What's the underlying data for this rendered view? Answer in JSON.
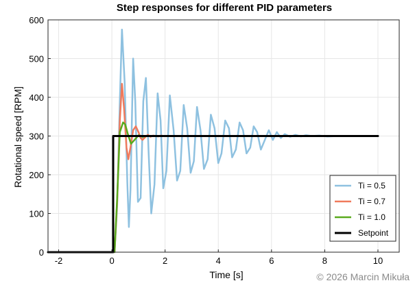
{
  "chart_data": {
    "type": "line",
    "title": "Step responses for different PID parameters",
    "xlabel": "Time [s]",
    "ylabel": "Rotational speed [RPM]",
    "xlim": [
      -2.4,
      10.8
    ],
    "ylim": [
      0,
      600
    ],
    "xticks": [
      -2,
      0,
      2,
      4,
      6,
      8,
      10
    ],
    "yticks": [
      0,
      100,
      200,
      300,
      400,
      500,
      600
    ],
    "grid": true,
    "legend_position": "bottom-right",
    "series": [
      {
        "name": "Ti = 0.5",
        "color": "#8ec1e0",
        "line_width": 2.5,
        "x": [
          0.1,
          0.2,
          0.3,
          0.38,
          0.48,
          0.58,
          0.64,
          0.7,
          0.8,
          0.88,
          0.98,
          1.08,
          1.18,
          1.28,
          1.38,
          1.48,
          1.6,
          1.72,
          1.83,
          1.93,
          2.05,
          2.18,
          2.32,
          2.45,
          2.57,
          2.7,
          2.83,
          2.96,
          3.08,
          3.2,
          3.33,
          3.46,
          3.6,
          3.72,
          3.86,
          4.0,
          4.12,
          4.26,
          4.4,
          4.52,
          4.66,
          4.8,
          4.93,
          5.06,
          5.2,
          5.33,
          5.46,
          5.6,
          5.75,
          5.9,
          6.05,
          6.2,
          6.35,
          6.5,
          6.7,
          6.9,
          7.1,
          7.3,
          7.5,
          7.8,
          8.1,
          8.5,
          9.0,
          10.0
        ],
        "y": [
          0,
          120,
          390,
          575,
          440,
          180,
          65,
          160,
          500,
          390,
          130,
          140,
          390,
          450,
          260,
          100,
          175,
          410,
          340,
          165,
          210,
          405,
          315,
          185,
          210,
          380,
          320,
          205,
          235,
          375,
          315,
          215,
          240,
          355,
          320,
          230,
          255,
          340,
          320,
          245,
          265,
          335,
          315,
          255,
          270,
          325,
          310,
          265,
          290,
          315,
          290,
          310,
          295,
          305,
          298,
          303,
          299,
          302,
          300,
          301,
          299,
          300,
          300,
          300
        ]
      },
      {
        "name": "Ti = 0.7",
        "color": "#f07a5c",
        "line_width": 2.5,
        "x": [
          0.1,
          0.2,
          0.3,
          0.38,
          0.46,
          0.55,
          0.62,
          0.7,
          0.8,
          0.9,
          1.0,
          1.08,
          1.15,
          1.25,
          1.35,
          1.45,
          1.55,
          1.65,
          1.75,
          1.85,
          1.95,
          2.0
        ],
        "y": [
          0,
          130,
          340,
          435,
          370,
          270,
          240,
          270,
          315,
          325,
          310,
          295,
          290,
          297,
          303,
          298,
          301,
          300,
          299,
          301,
          300,
          300
        ]
      },
      {
        "name": "Ti = 1.0",
        "color": "#5aaa1e",
        "line_width": 2.5,
        "x": [
          0.1,
          0.2,
          0.3,
          0.42,
          0.5,
          0.6,
          0.72,
          0.85,
          1.0,
          1.15,
          1.3,
          1.5
        ],
        "y": [
          0,
          140,
          310,
          335,
          330,
          305,
          280,
          290,
          302,
          298,
          300,
          300
        ]
      },
      {
        "name": "Setpoint",
        "color": "#000000",
        "line_width": 3,
        "x": [
          -2.4,
          0.05,
          0.05,
          10.0
        ],
        "y": [
          0,
          0,
          300,
          300
        ]
      }
    ]
  },
  "copyright": "© 2026 Marcin Mikuła"
}
